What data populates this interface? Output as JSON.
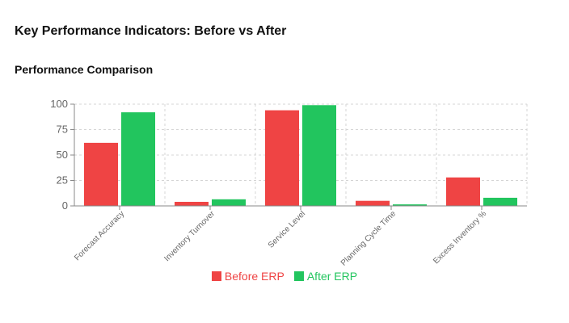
{
  "header": {
    "title": "Key Performance Indicators: Before vs After"
  },
  "section": {
    "title": "Performance Comparison"
  },
  "chart_data": {
    "type": "bar",
    "categories": [
      "Forecast Accuracy",
      "Inventory Turnover",
      "Service Level",
      "Planning Cycle Time",
      "Excess Inventory %"
    ],
    "series": [
      {
        "name": "Before ERP",
        "values": [
          62,
          4,
          94,
          5,
          28
        ],
        "color": "#ef4444"
      },
      {
        "name": "After ERP",
        "values": [
          92,
          6.5,
          99,
          1.5,
          8
        ],
        "color": "#22c55e"
      }
    ],
    "ylim": [
      0,
      100
    ],
    "yticks": [
      0,
      25,
      50,
      75,
      100
    ],
    "grid": true,
    "legend": "bottom-center"
  }
}
